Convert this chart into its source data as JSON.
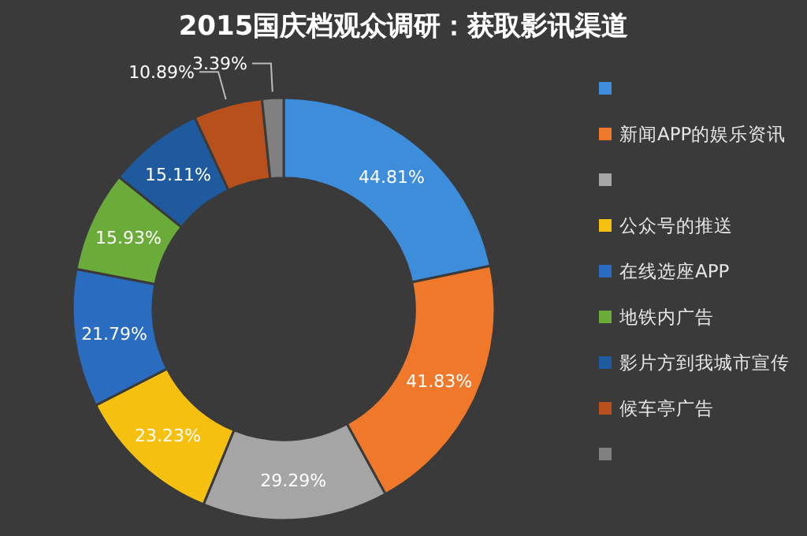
{
  "chart_data": {
    "type": "donut",
    "title": "2015国庆档观众调研：获取影讯渠道",
    "categories": [
      null,
      "新闻APP的娱乐资讯",
      null,
      "公众号的推送",
      "在线选座APP",
      "地铁内广告",
      "影片方到我城市宣传",
      "候车亭广告",
      null
    ],
    "values": [
      44.81,
      41.83,
      29.29,
      23.23,
      21.79,
      15.93,
      15.11,
      10.89,
      3.39
    ],
    "value_labels": [
      "44.81%",
      "41.83%",
      "29.29%",
      "23.23%",
      "21.79%",
      "15.93%",
      "15.11%",
      "10.89%",
      "3.39%"
    ],
    "colors": [
      "#3d8ddb",
      "#f0782a",
      "#a5a5a5",
      "#f5c010",
      "#2a6cc0",
      "#6aab3a",
      "#1f5a9e",
      "#b8501c",
      "#808080"
    ],
    "legend": "right"
  }
}
